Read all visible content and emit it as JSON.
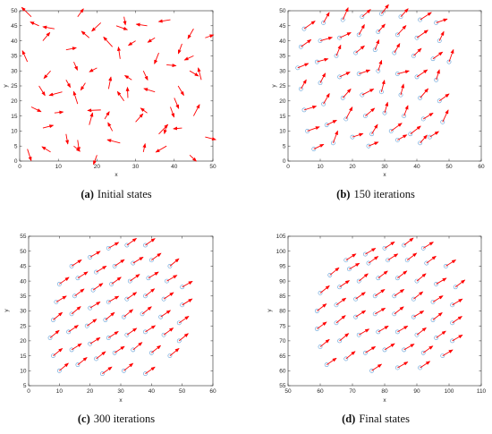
{
  "colors": {
    "arrow": "#ff0000",
    "marker": "#5b9bd5",
    "axis": "#262626"
  },
  "chart_data": [
    {
      "type": "scatter",
      "panel_label": "(a)",
      "caption": "Initial states",
      "xlabel": "x",
      "ylabel": "y",
      "xlim": [
        0,
        50
      ],
      "ylim": [
        0,
        50
      ],
      "xticks": [
        "0",
        "10",
        "20",
        "30",
        "40",
        "50"
      ],
      "yticks": [
        "0",
        "5",
        "10",
        "15",
        "20",
        "25",
        "30",
        "35",
        "40",
        "45",
        "50"
      ],
      "markers": false,
      "arrow_pattern": "random headings",
      "agents": [
        [
          3.0,
          48.0
        ],
        [
          9.0,
          44.0
        ],
        [
          15.0,
          48.0
        ],
        [
          21.0,
          46.0
        ],
        [
          27.0,
          48.0
        ],
        [
          33.0,
          45.0
        ],
        [
          39.0,
          47.0
        ],
        [
          45.0,
          44.0
        ],
        [
          6.0,
          40.0
        ],
        [
          12.0,
          37.0
        ],
        [
          18.0,
          41.0
        ],
        [
          24.0,
          38.0
        ],
        [
          30.0,
          40.0
        ],
        [
          36.0,
          36.0
        ],
        [
          42.0,
          39.0
        ],
        [
          48.0,
          41.0
        ],
        [
          2.0,
          33.0
        ],
        [
          8.0,
          30.0
        ],
        [
          14.0,
          33.0
        ],
        [
          20.0,
          31.0
        ],
        [
          26.0,
          34.0
        ],
        [
          32.0,
          30.0
        ],
        [
          38.0,
          32.0
        ],
        [
          44.0,
          30.0
        ],
        [
          5.0,
          25.0
        ],
        [
          11.0,
          23.0
        ],
        [
          17.0,
          26.0
        ],
        [
          23.0,
          24.0
        ],
        [
          29.0,
          27.0
        ],
        [
          35.0,
          23.0
        ],
        [
          41.0,
          25.0
        ],
        [
          47.0,
          27.0
        ],
        [
          3.0,
          18.0
        ],
        [
          9.0,
          16.0
        ],
        [
          15.0,
          19.0
        ],
        [
          21.0,
          17.0
        ],
        [
          27.0,
          20.0
        ],
        [
          33.0,
          16.0
        ],
        [
          39.0,
          18.0
        ],
        [
          45.0,
          15.0
        ],
        [
          6.0,
          11.0
        ],
        [
          12.0,
          9.0
        ],
        [
          18.0,
          12.0
        ],
        [
          24.0,
          10.0
        ],
        [
          30.0,
          13.0
        ],
        [
          36.0,
          9.0
        ],
        [
          42.0,
          11.0
        ],
        [
          48.0,
          8.0
        ],
        [
          2.0,
          4.0
        ],
        [
          8.0,
          3.0
        ],
        [
          14.0,
          5.0
        ],
        [
          20.0,
          2.0
        ],
        [
          26.0,
          6.0
        ],
        [
          32.0,
          3.0
        ],
        [
          38.0,
          5.0
        ],
        [
          44.0,
          2.0
        ],
        [
          25.0,
          45.0
        ],
        [
          12.0,
          27.0
        ],
        [
          40.0,
          21.0
        ],
        [
          22.0,
          14.0
        ],
        [
          35.0,
          41.0
        ],
        [
          15.0,
          7.0
        ],
        [
          45.0,
          35.0
        ],
        [
          5.0,
          45.0
        ],
        [
          28.0,
          21.0
        ],
        [
          38.0,
          12.0
        ]
      ]
    },
    {
      "type": "scatter",
      "panel_label": "(b)",
      "caption": "150 iterations",
      "xlabel": "x",
      "ylabel": "y",
      "xlim": [
        0,
        60
      ],
      "ylim": [
        0,
        50
      ],
      "xticks": [
        "0",
        "10",
        "20",
        "30",
        "40",
        "50",
        "60"
      ],
      "yticks": [
        "0",
        "5",
        "10",
        "15",
        "20",
        "25",
        "30",
        "35",
        "40",
        "45",
        "50"
      ],
      "markers": true,
      "arrow_pattern": "mostly aligned up-right",
      "agents": [
        [
          5.0,
          44.0
        ],
        [
          11.0,
          46.0
        ],
        [
          17.0,
          47.0
        ],
        [
          23.0,
          48.0
        ],
        [
          29.0,
          49.0
        ],
        [
          35.0,
          48.0
        ],
        [
          41.0,
          47.0
        ],
        [
          46.0,
          46.0
        ],
        [
          4.0,
          38.0
        ],
        [
          10.0,
          40.0
        ],
        [
          16.0,
          41.0
        ],
        [
          22.0,
          42.0
        ],
        [
          28.0,
          43.0
        ],
        [
          34.0,
          42.0
        ],
        [
          40.0,
          41.0
        ],
        [
          47.0,
          40.0
        ],
        [
          3.0,
          31.0
        ],
        [
          9.0,
          33.0
        ],
        [
          15.0,
          35.0
        ],
        [
          21.0,
          36.0
        ],
        [
          27.0,
          37.0
        ],
        [
          33.0,
          36.0
        ],
        [
          39.0,
          35.0
        ],
        [
          45.0,
          34.0
        ],
        [
          50.0,
          33.0
        ],
        [
          4.0,
          24.0
        ],
        [
          10.0,
          26.0
        ],
        [
          16.0,
          28.0
        ],
        [
          22.0,
          29.0
        ],
        [
          28.0,
          30.0
        ],
        [
          34.0,
          29.0
        ],
        [
          40.0,
          28.0
        ],
        [
          46.0,
          27.0
        ],
        [
          5.0,
          17.0
        ],
        [
          11.0,
          19.0
        ],
        [
          17.0,
          21.0
        ],
        [
          23.0,
          22.0
        ],
        [
          29.0,
          23.0
        ],
        [
          35.0,
          22.0
        ],
        [
          41.0,
          21.0
        ],
        [
          47.0,
          20.0
        ],
        [
          6.0,
          10.0
        ],
        [
          12.0,
          12.0
        ],
        [
          18.0,
          14.0
        ],
        [
          24.0,
          15.0
        ],
        [
          30.0,
          16.0
        ],
        [
          36.0,
          15.0
        ],
        [
          42.0,
          14.0
        ],
        [
          48.0,
          13.0
        ],
        [
          8.0,
          4.0
        ],
        [
          14.0,
          6.0
        ],
        [
          20.0,
          8.0
        ],
        [
          26.0,
          9.0
        ],
        [
          32.0,
          10.0
        ],
        [
          38.0,
          9.0
        ],
        [
          44.0,
          8.0
        ],
        [
          25.0,
          5.0
        ],
        [
          34.0,
          7.0
        ],
        [
          41.0,
          6.0
        ]
      ]
    },
    {
      "type": "scatter",
      "panel_label": "(c)",
      "caption": "300 iterations",
      "xlabel": "x",
      "ylabel": "y",
      "xlim": [
        0,
        60
      ],
      "ylim": [
        5,
        55
      ],
      "xticks": [
        "0",
        "10",
        "20",
        "30",
        "40",
        "50",
        "60"
      ],
      "yticks": [
        "5",
        "10",
        "15",
        "20",
        "25",
        "30",
        "35",
        "40",
        "45",
        "50",
        "55"
      ],
      "markers": true,
      "arrow_pattern": "aligned up-right",
      "agents": [
        [
          14.0,
          45.0
        ],
        [
          20.0,
          48.0
        ],
        [
          26.0,
          51.0
        ],
        [
          32.0,
          52.0
        ],
        [
          38.0,
          52.0
        ],
        [
          10.0,
          39.0
        ],
        [
          16.0,
          41.0
        ],
        [
          22.0,
          43.0
        ],
        [
          28.0,
          45.0
        ],
        [
          34.0,
          46.0
        ],
        [
          40.0,
          47.0
        ],
        [
          46.0,
          45.0
        ],
        [
          9.0,
          33.0
        ],
        [
          15.0,
          35.0
        ],
        [
          21.0,
          37.0
        ],
        [
          27.0,
          39.0
        ],
        [
          33.0,
          40.0
        ],
        [
          39.0,
          41.0
        ],
        [
          45.0,
          40.0
        ],
        [
          50.0,
          38.0
        ],
        [
          8.0,
          27.0
        ],
        [
          14.0,
          29.0
        ],
        [
          20.0,
          31.0
        ],
        [
          26.0,
          33.0
        ],
        [
          32.0,
          34.0
        ],
        [
          38.0,
          35.0
        ],
        [
          44.0,
          34.0
        ],
        [
          50.0,
          32.0
        ],
        [
          7.0,
          21.0
        ],
        [
          13.0,
          23.0
        ],
        [
          19.0,
          25.0
        ],
        [
          25.0,
          27.0
        ],
        [
          31.0,
          28.0
        ],
        [
          37.0,
          29.0
        ],
        [
          43.0,
          28.0
        ],
        [
          49.0,
          26.0
        ],
        [
          8.0,
          15.0
        ],
        [
          14.0,
          17.0
        ],
        [
          20.0,
          19.0
        ],
        [
          26.0,
          21.0
        ],
        [
          32.0,
          22.0
        ],
        [
          38.0,
          23.0
        ],
        [
          44.0,
          22.0
        ],
        [
          49.0,
          20.0
        ],
        [
          10.0,
          10.0
        ],
        [
          16.0,
          12.0
        ],
        [
          22.0,
          14.0
        ],
        [
          28.0,
          16.0
        ],
        [
          34.0,
          17.0
        ],
        [
          40.0,
          16.0
        ],
        [
          46.0,
          15.0
        ],
        [
          24.0,
          9.0
        ],
        [
          31.0,
          10.0
        ],
        [
          38.0,
          9.0
        ]
      ]
    },
    {
      "type": "scatter",
      "panel_label": "(d)",
      "caption": "Final states",
      "xlabel": "x",
      "ylabel": "y",
      "xlim": [
        50,
        110
      ],
      "ylim": [
        55,
        105
      ],
      "xticks": [
        "50",
        "60",
        "70",
        "80",
        "90",
        "100",
        "110"
      ],
      "yticks": [
        "55",
        "60",
        "65",
        "70",
        "75",
        "80",
        "85",
        "90",
        "95",
        "100",
        "105"
      ],
      "markers": true,
      "arrow_pattern": "aligned up-right",
      "agents": [
        [
          68.0,
          97.0
        ],
        [
          74.0,
          99.0
        ],
        [
          80.0,
          101.0
        ],
        [
          86.0,
          102.0
        ],
        [
          92.0,
          101.0
        ],
        [
          63.0,
          92.0
        ],
        [
          69.0,
          94.0
        ],
        [
          75.0,
          96.0
        ],
        [
          81.0,
          97.0
        ],
        [
          87.0,
          97.0
        ],
        [
          93.0,
          96.0
        ],
        [
          99.0,
          95.0
        ],
        [
          60.0,
          86.0
        ],
        [
          66.0,
          88.0
        ],
        [
          72.0,
          90.0
        ],
        [
          78.0,
          91.0
        ],
        [
          84.0,
          91.0
        ],
        [
          90.0,
          90.0
        ],
        [
          96.0,
          89.0
        ],
        [
          102.0,
          88.0
        ],
        [
          59.0,
          80.0
        ],
        [
          65.0,
          82.0
        ],
        [
          71.0,
          84.0
        ],
        [
          77.0,
          85.0
        ],
        [
          83.0,
          85.0
        ],
        [
          89.0,
          84.0
        ],
        [
          95.0,
          83.0
        ],
        [
          101.0,
          82.0
        ],
        [
          59.0,
          74.0
        ],
        [
          65.0,
          76.0
        ],
        [
          71.0,
          78.0
        ],
        [
          77.0,
          79.0
        ],
        [
          83.0,
          79.0
        ],
        [
          89.0,
          78.0
        ],
        [
          95.0,
          77.0
        ],
        [
          101.0,
          76.0
        ],
        [
          60.0,
          68.0
        ],
        [
          66.0,
          70.0
        ],
        [
          72.0,
          72.0
        ],
        [
          78.0,
          73.0
        ],
        [
          84.0,
          73.0
        ],
        [
          90.0,
          72.0
        ],
        [
          96.0,
          71.0
        ],
        [
          101.0,
          70.0
        ],
        [
          62.0,
          62.0
        ],
        [
          68.0,
          64.0
        ],
        [
          74.0,
          66.0
        ],
        [
          80.0,
          67.0
        ],
        [
          86.0,
          67.0
        ],
        [
          92.0,
          66.0
        ],
        [
          98.0,
          65.0
        ],
        [
          76.0,
          60.0
        ],
        [
          84.0,
          61.0
        ],
        [
          91.0,
          61.0
        ]
      ]
    }
  ]
}
